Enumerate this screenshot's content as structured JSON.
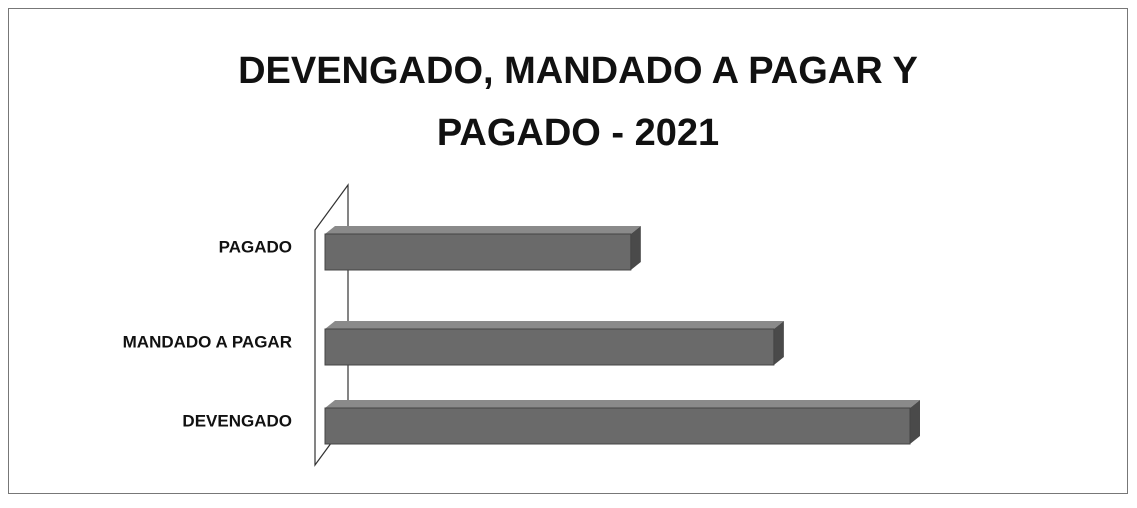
{
  "chart_data": {
    "type": "bar",
    "orientation": "horizontal",
    "title": "DEVENGADO, MANDADO A PAGAR Y PAGADO - 2021",
    "categories": [
      "PAGADO",
      "MANDADO A PAGAR",
      "DEVENGADO"
    ],
    "values": [
      310,
      455,
      593
    ],
    "color": "#6a6a6a"
  }
}
